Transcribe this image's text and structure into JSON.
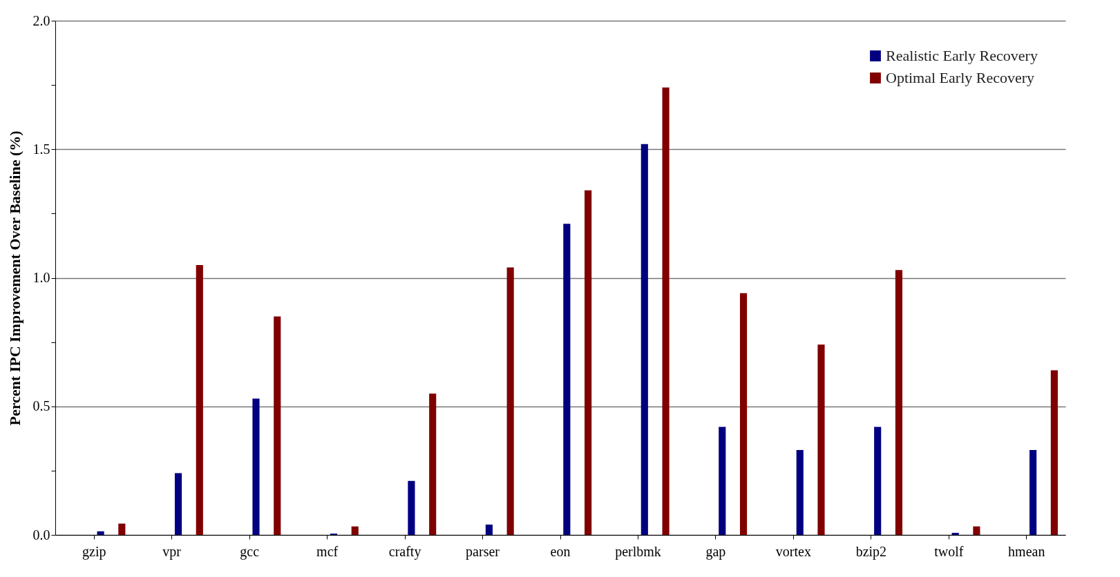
{
  "chart_data": {
    "type": "bar",
    "ylabel": "Percent IPC Improvement Over Baseline (%)",
    "categories": [
      "gzip",
      "vpr",
      "gcc",
      "mcf",
      "crafty",
      "parser",
      "eon",
      "perlbmk",
      "gap",
      "vortex",
      "bzip2",
      "twolf",
      "hmean"
    ],
    "series": [
      {
        "name": "Realistic Early Recovery",
        "color": "#000080",
        "values": [
          0.014,
          0.24,
          0.53,
          0.005,
          0.21,
          0.04,
          1.21,
          1.52,
          0.42,
          0.33,
          0.42,
          0.008,
          0.33
        ]
      },
      {
        "name": "Optimal Early Recovery",
        "color": "#800000",
        "values": [
          0.044,
          1.05,
          0.85,
          0.033,
          0.55,
          1.04,
          1.34,
          1.74,
          0.94,
          0.74,
          1.03,
          0.033,
          0.64
        ]
      }
    ],
    "ylim": [
      0,
      2
    ],
    "yticks": [
      {
        "value": 0,
        "label": "0.0"
      },
      {
        "value": 0.25,
        "label": null
      },
      {
        "value": 0.5,
        "label": "0.5"
      },
      {
        "value": 0.75,
        "label": null
      },
      {
        "value": 1,
        "label": "1.0"
      },
      {
        "value": 1.25,
        "label": null
      },
      {
        "value": 1.5,
        "label": "1.5"
      },
      {
        "value": 1.75,
        "label": null
      },
      {
        "value": 2,
        "label": "2.0"
      }
    ],
    "grid": "y",
    "legend": "top right"
  }
}
